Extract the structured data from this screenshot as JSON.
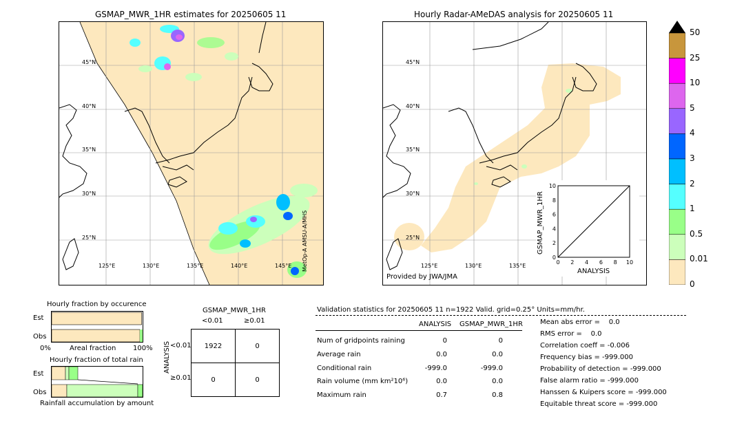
{
  "left_map": {
    "title": "GSMAP_MWR_1HR estimates for 20250605 11",
    "lat_labels": [
      "45°N",
      "40°N",
      "35°N",
      "30°N",
      "25°N"
    ],
    "lon_labels": [
      "125°E",
      "130°E",
      "135°E",
      "140°E",
      "145°E"
    ],
    "side_note": "MetOp-A AMSU-A/MHS"
  },
  "right_map": {
    "title": "Hourly Radar-AMeDAS analysis for 20250605 11",
    "lat_labels": [
      "45°N",
      "40°N",
      "35°N",
      "30°N",
      "25°N"
    ],
    "lon_labels": [
      "125°E",
      "130°E",
      "135°E"
    ],
    "credit": "Provided by JWA/JMA"
  },
  "colorbar": {
    "labels": [
      "50",
      "25",
      "10",
      "5",
      "4",
      "3",
      "2",
      "1",
      "0.5",
      "0.01",
      "0"
    ],
    "colors": [
      "#c8963c",
      "#ff00ff",
      "#dd66ee",
      "#9966ff",
      "#0066ff",
      "#00bfff",
      "#55ffff",
      "#99ff88",
      "#ccffbb",
      "#fde8be"
    ]
  },
  "chart_data": [
    {
      "type": "scatter",
      "xlabel": "ANALYSIS",
      "ylabel": "GSMAP_MWR_1HR",
      "xlim": [
        0,
        10
      ],
      "ylim": [
        0,
        10
      ],
      "x_ticks": [
        "0",
        "2",
        "4",
        "6",
        "8",
        "10"
      ],
      "y_ticks": [
        "0",
        "2",
        "4",
        "6",
        "8",
        "10"
      ],
      "diagonal": [
        [
          0,
          0
        ],
        [
          10,
          10
        ]
      ],
      "points": []
    },
    {
      "type": "bar",
      "title": "Hourly fraction by occurence",
      "categories": [
        "Est",
        "Obs"
      ],
      "values": [
        0.99,
        0.97
      ],
      "xlabel": "Areal fraction",
      "x_ticks": [
        "0%",
        "100%"
      ]
    },
    {
      "type": "bar",
      "title": "Hourly fraction of total rain",
      "categories": [
        "Est",
        "Obs"
      ],
      "xlabel": "Rainfall accumulation by amount"
    }
  ],
  "contingency": {
    "title": "GSMAP_MWR_1HR",
    "col_headers": [
      "<0.01",
      "≥0.01"
    ],
    "row_axis": "ANALYSIS",
    "row_headers": [
      "<0.01",
      "≥0.01"
    ],
    "cells": [
      [
        "1922",
        "0"
      ],
      [
        "0",
        "0"
      ]
    ]
  },
  "validation": {
    "header": "Validation statistics for 20250605 11  n=1922 Valid. grid=0.25° Units=mm/hr.",
    "col_analysis": "ANALYSIS",
    "col_gsmap": "GSMAP_MWR_1HR",
    "rows": [
      {
        "label": "Num of gridpoints raining",
        "analysis": "0",
        "gsmap": "0"
      },
      {
        "label": "Average rain",
        "analysis": "0.0",
        "gsmap": "0.0"
      },
      {
        "label": "Conditional rain",
        "analysis": "-999.0",
        "gsmap": "-999.0"
      },
      {
        "label": "Rain volume (mm km²10⁶)",
        "analysis": "0.0",
        "gsmap": "0.0"
      },
      {
        "label": "Maximum rain",
        "analysis": "0.7",
        "gsmap": "0.8"
      }
    ],
    "scores": [
      "Mean abs error =    0.0",
      "RMS error =    0.0",
      "Correlation coeff = -0.006",
      "Frequency bias = -999.000",
      "Probability of detection = -999.000",
      "False alarm ratio = -999.000",
      "Hanssen & Kuipers score = -999.000",
      "Equitable threat score = -999.000"
    ]
  }
}
